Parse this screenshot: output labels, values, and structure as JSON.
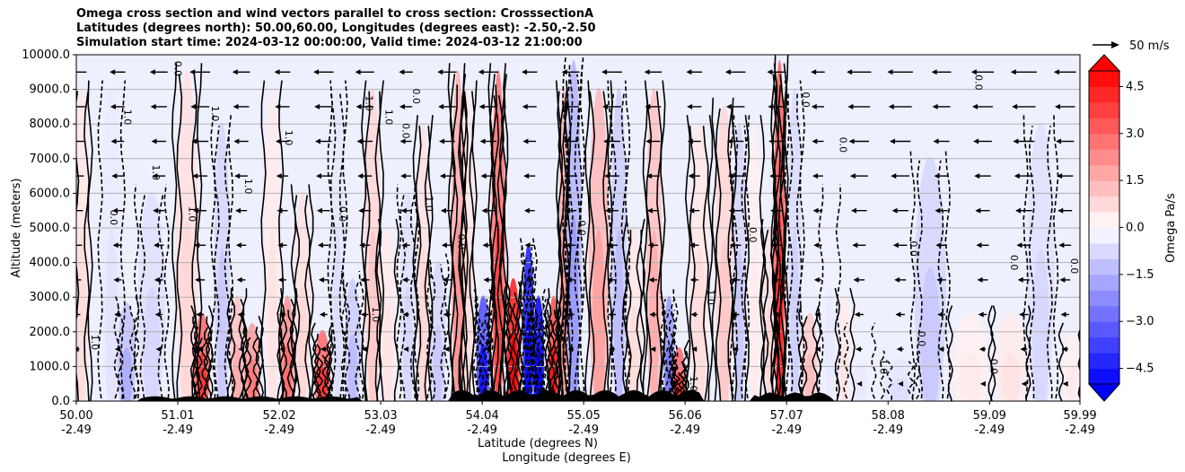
{
  "chart_data": {
    "type": "heatmap",
    "title_lines": [
      "Omega cross section and wind vectors parallel to cross section: CrosssectionA",
      "Latitudes (degrees north): 50.00,60.00, Longitudes (degrees east): -2.50,-2.50",
      "Simulation start time: 2024-03-12 00:00:00, Valid time: 2024-03-12 21:00:00"
    ],
    "ylabel": "Altitude (meters)",
    "xlabel_lat": "Latitude (degrees N)",
    "xlabel_lon": "Longitude (degrees E)",
    "ylim": [
      0,
      10000
    ],
    "y_ticks": [
      "0.0",
      "1000.0",
      "2000.0",
      "3000.0",
      "4000.0",
      "5000.0",
      "6000.0",
      "7000.0",
      "8000.0",
      "9000.0",
      "10000.0"
    ],
    "x_ticks_lat": [
      "50.00",
      "51.01",
      "52.02",
      "53.03",
      "54.04",
      "55.05",
      "56.06",
      "57.07",
      "58.08",
      "59.09",
      "59.99"
    ],
    "x_ticks_lon": [
      "-2.49",
      "-2.49",
      "-2.49",
      "-2.49",
      "-2.49",
      "-2.49",
      "-2.49",
      "-2.49",
      "-2.49",
      "-2.49",
      "-2.49"
    ],
    "colorbar": {
      "label": "Omega Pa/s",
      "range": [
        -5,
        5
      ],
      "ticks": [
        "4.5",
        "3.0",
        "1.5",
        "0.0",
        "−1.5",
        "−3.0",
        "−4.5"
      ],
      "extend": "both",
      "colormap": "bwr"
    },
    "quiver_key": "50 m/s",
    "omega_bands": [
      {
        "lat": 50.05,
        "omega": 0.5,
        "top": 9000
      },
      {
        "lat": 50.35,
        "omega": -0.4,
        "top": 9000
      },
      {
        "lat": 50.5,
        "omega": -1.2,
        "top": 2800
      },
      {
        "lat": 50.75,
        "omega": -0.6,
        "top": 6000
      },
      {
        "lat": 51.1,
        "omega": 0.6,
        "top": 9500
      },
      {
        "lat": 51.25,
        "omega": 3.0,
        "top": 2500
      },
      {
        "lat": 51.45,
        "omega": -0.8,
        "top": 8000
      },
      {
        "lat": 51.6,
        "omega": 1.2,
        "top": 3000
      },
      {
        "lat": 51.75,
        "omega": 2.0,
        "top": 2200
      },
      {
        "lat": 51.95,
        "omega": 0.4,
        "top": 9000
      },
      {
        "lat": 52.1,
        "omega": 2.2,
        "top": 3000
      },
      {
        "lat": 52.25,
        "omega": 0.6,
        "top": 6000
      },
      {
        "lat": 52.45,
        "omega": 3.0,
        "top": 2000
      },
      {
        "lat": 52.6,
        "omega": -0.5,
        "top": 9000
      },
      {
        "lat": 52.75,
        "omega": -1.0,
        "top": 3500
      },
      {
        "lat": 52.95,
        "omega": 0.8,
        "top": 9000
      },
      {
        "lat": 53.1,
        "omega": 0.4,
        "top": 5000
      },
      {
        "lat": 53.3,
        "omega": -0.6,
        "top": 6000
      },
      {
        "lat": 53.45,
        "omega": 0.6,
        "top": 8000
      },
      {
        "lat": 53.6,
        "omega": -0.8,
        "top": 4000
      },
      {
        "lat": 53.8,
        "omega": 1.6,
        "top": 9500
      },
      {
        "lat": 53.9,
        "omega": 0.5,
        "top": 9000
      },
      {
        "lat": 54.05,
        "omega": -3.5,
        "top": 3000
      },
      {
        "lat": 54.2,
        "omega": 2.8,
        "top": 9500
      },
      {
        "lat": 54.35,
        "omega": 4.5,
        "top": 3500
      },
      {
        "lat": 54.5,
        "omega": -4.5,
        "top": 4500
      },
      {
        "lat": 54.6,
        "omega": -5.0,
        "top": 3000
      },
      {
        "lat": 54.75,
        "omega": 3.5,
        "top": 3000
      },
      {
        "lat": 54.85,
        "omega": 1.6,
        "top": 9000
      },
      {
        "lat": 54.95,
        "omega": -1.5,
        "top": 9800
      },
      {
        "lat": 55.2,
        "omega": 1.4,
        "top": 9000
      },
      {
        "lat": 55.4,
        "omega": -1.0,
        "top": 9000
      },
      {
        "lat": 55.55,
        "omega": 0.5,
        "top": 5000
      },
      {
        "lat": 55.75,
        "omega": 1.2,
        "top": 9000
      },
      {
        "lat": 55.9,
        "omega": -2.0,
        "top": 3000
      },
      {
        "lat": 56.0,
        "omega": 3.0,
        "top": 1500
      },
      {
        "lat": 56.2,
        "omega": 0.5,
        "top": 8000
      },
      {
        "lat": 56.45,
        "omega": 0.8,
        "top": 8500
      },
      {
        "lat": 56.6,
        "omega": -0.8,
        "top": 8000
      },
      {
        "lat": 56.75,
        "omega": 0.3,
        "top": 8000
      },
      {
        "lat": 56.9,
        "omega": 0.6,
        "top": 5000
      },
      {
        "lat": 57.0,
        "omega": 3.2,
        "top": 9800
      },
      {
        "lat": 57.15,
        "omega": -0.7,
        "top": 9000
      },
      {
        "lat": 57.3,
        "omega": 1.0,
        "top": 2500
      },
      {
        "lat": 57.5,
        "omega": -0.3,
        "top": 6000
      },
      {
        "lat": 57.65,
        "omega": 0.4,
        "top": 3000
      },
      {
        "lat": 57.8,
        "omega": -0.3,
        "top": 2000
      },
      {
        "lat": 58.2,
        "omega": -0.5,
        "top": 1200
      },
      {
        "lat": 58.5,
        "omega": -0.8,
        "top": 7000
      },
      {
        "lat": 58.9,
        "omega": 0.3,
        "top": 2500
      },
      {
        "lat": 59.3,
        "omega": 0.4,
        "top": 2500
      },
      {
        "lat": 59.6,
        "omega": -0.6,
        "top": 8000
      },
      {
        "lat": 59.9,
        "omega": 0.3,
        "top": 2000
      }
    ],
    "contour_labels": [
      {
        "text": "1.0",
        "lat": 50.48,
        "alt": 8200
      },
      {
        "text": "0.0",
        "lat": 50.34,
        "alt": 5300
      },
      {
        "text": "1.0",
        "lat": 50.76,
        "alt": 6600
      },
      {
        "text": "1.0",
        "lat": 50.15,
        "alt": 1700
      },
      {
        "text": "0.0",
        "lat": 50.98,
        "alt": 9600
      },
      {
        "text": "1.0",
        "lat": 51.12,
        "alt": 5400
      },
      {
        "text": "1.0",
        "lat": 51.35,
        "alt": 8300
      },
      {
        "text": "1.0",
        "lat": 51.68,
        "alt": 6200
      },
      {
        "text": "1.0",
        "lat": 52.08,
        "alt": 7600
      },
      {
        "text": "0.0",
        "lat": 52.62,
        "alt": 5400
      },
      {
        "text": "1.0",
        "lat": 52.88,
        "alt": 8600
      },
      {
        "text": "1.0",
        "lat": 53.08,
        "alt": 8200
      },
      {
        "text": "0.0",
        "lat": 53.35,
        "alt": 8800
      },
      {
        "text": "1.0",
        "lat": 53.48,
        "alt": 5700
      },
      {
        "text": "0.0",
        "lat": 53.25,
        "alt": 7800
      },
      {
        "text": "1.0",
        "lat": 52.95,
        "alt": 2500
      },
      {
        "text": "0.0",
        "lat": 53.8,
        "alt": 4600
      },
      {
        "text": "0.0",
        "lat": 55.0,
        "alt": 5000
      },
      {
        "text": "1.0",
        "lat": 56.28,
        "alt": 3000
      },
      {
        "text": "0.0",
        "lat": 56.7,
        "alt": 4800
      },
      {
        "text": "0.0",
        "lat": 57.6,
        "alt": 7400
      },
      {
        "text": "0.0",
        "lat": 58.95,
        "alt": 9200
      },
      {
        "text": "0.0",
        "lat": 58.3,
        "alt": 4400
      },
      {
        "text": "0.0",
        "lat": 58.38,
        "alt": 1800
      },
      {
        "text": "0.0",
        "lat": 59.3,
        "alt": 4000
      },
      {
        "text": "0.0",
        "lat": 59.9,
        "alt": 3900
      },
      {
        "text": "0.0",
        "lat": 59.1,
        "alt": 1000
      },
      {
        "text": "1.0",
        "lat": 58.0,
        "alt": 1000
      },
      {
        "text": "0.0",
        "lat": 57.23,
        "alt": 8700
      },
      {
        "text": "1.0",
        "lat": 56.11,
        "alt": 500
      }
    ]
  }
}
